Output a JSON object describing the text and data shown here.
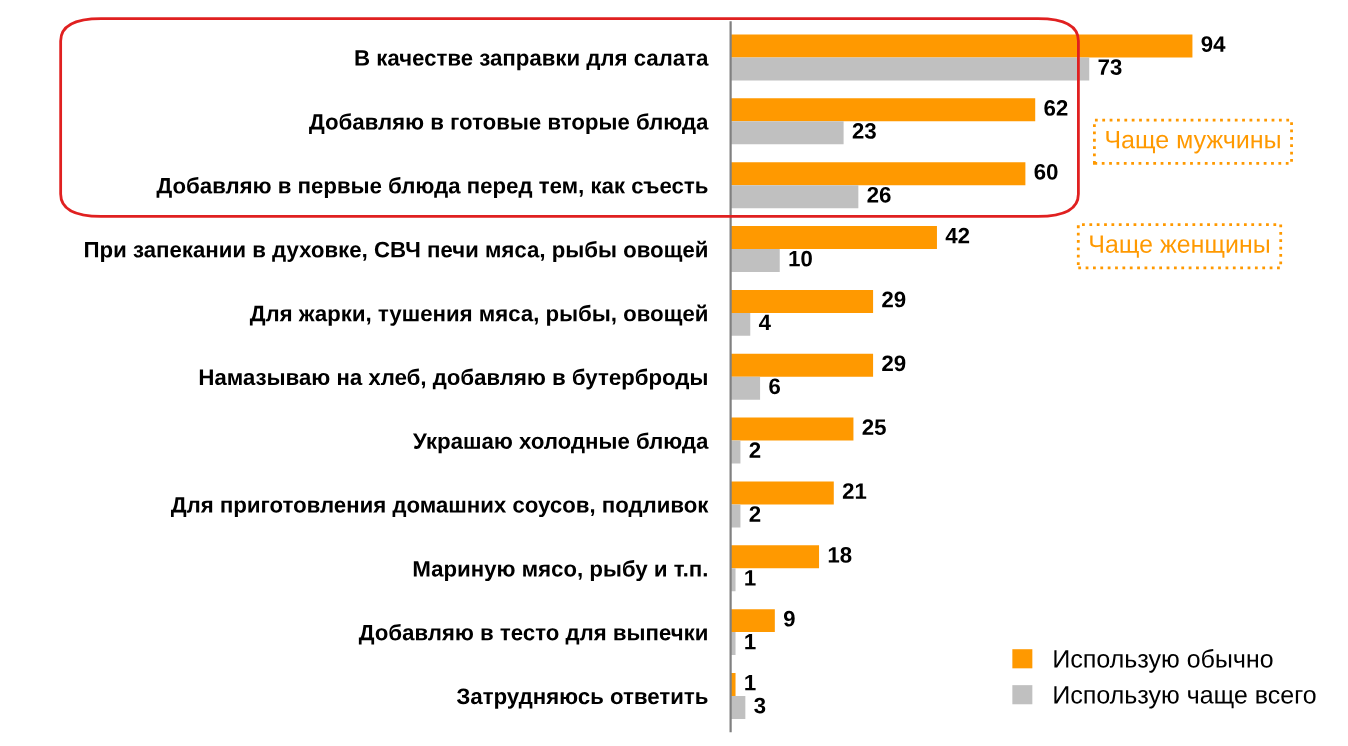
{
  "chart_data": {
    "type": "bar",
    "orientation": "horizontal",
    "categories": [
      "В качестве заправки для салата",
      "Добавляю в готовые вторые блюда",
      "Добавляю в первые блюда перед тем, как съесть",
      "При запекании в духовке, СВЧ печи мяса, рыбы овощей",
      "Для жарки, тушения мяса, рыбы, овощей",
      "Намазываю на хлеб, добавляю в бутерброды",
      "Украшаю холодные блюда",
      "Для приготовления домашних соусов, подливок",
      "Мариную мясо, рыбу и т.п.",
      "Добавляю в тесто для выпечки",
      "Затрудняюсь ответить"
    ],
    "series": [
      {
        "name": "Использую обычно",
        "color": "#ff9900",
        "values": [
          94,
          62,
          60,
          42,
          29,
          29,
          25,
          21,
          18,
          9,
          1
        ]
      },
      {
        "name": "Использую чаще всего",
        "color": "#c0c0c0",
        "values": [
          73,
          23,
          26,
          10,
          4,
          6,
          2,
          2,
          1,
          1,
          3
        ]
      }
    ],
    "data_labels": true,
    "legend": "bottom right",
    "grid": false,
    "annotations": [
      "Чаще мужчины",
      "Чаще женщины"
    ]
  }
}
